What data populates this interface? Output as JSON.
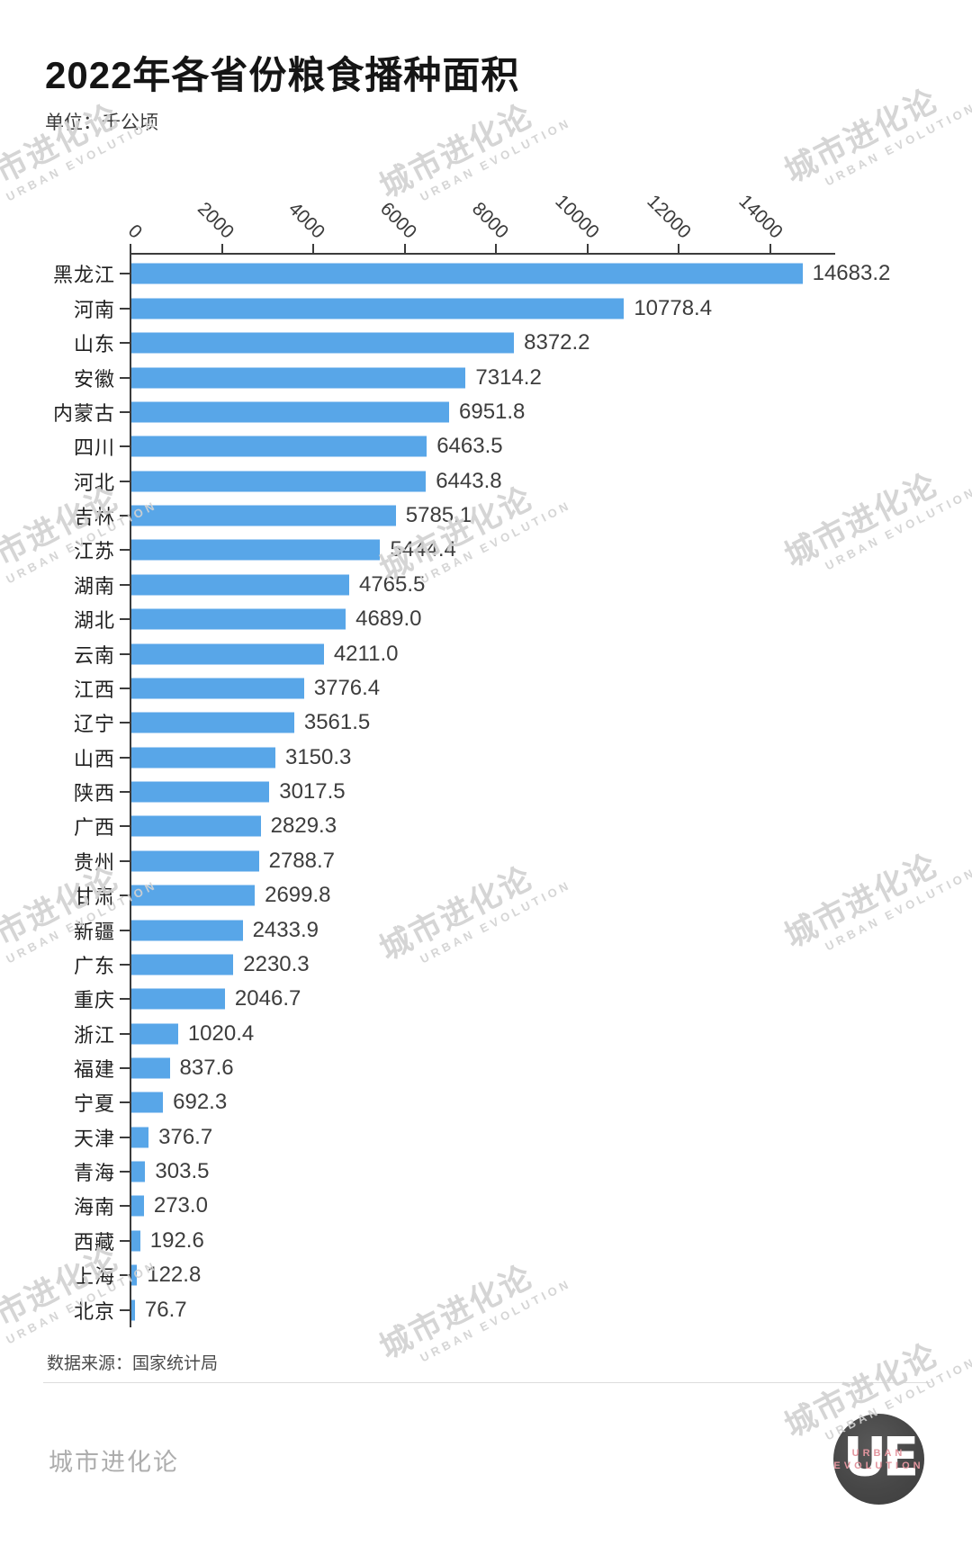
{
  "title": "2022年各省份粮食播种面积",
  "subtitle": "单位：千公顷",
  "source": "数据来源：国家统计局",
  "brand_footer": "城市进化论",
  "watermark": {
    "line1": "城市进化论",
    "line2": "URBAN EVOLUTION"
  },
  "logo": {
    "monogram": "UE",
    "line1": "URBAN",
    "line2": "EVOLUTION"
  },
  "colors": {
    "bar": "#58a6e8",
    "axis": "#3c3c3c",
    "value_text": "#3d3d3d",
    "label_text": "#1f1f1f",
    "watermark": "#d2d2d2",
    "divider": "#dcdcdc",
    "brand_text": "#adadad",
    "logo_bg": "#4a4a4a",
    "logo_accent": "#e2959e"
  },
  "chart_data": {
    "type": "bar",
    "orientation": "horizontal",
    "title": "2022年各省份粮食播种面积",
    "unit_label": "单位：千公顷",
    "xlabel": "",
    "ylabel": "",
    "x_ticks": [
      0,
      2000,
      4000,
      6000,
      8000,
      10000,
      12000,
      14000
    ],
    "xlim": [
      0,
      15400
    ],
    "grid": false,
    "legend": "none",
    "value_labels": "end_of_bar",
    "categories": [
      "黑龙江",
      "河南",
      "山东",
      "安徽",
      "内蒙古",
      "四川",
      "河北",
      "吉林",
      "江苏",
      "湖南",
      "湖北",
      "云南",
      "江西",
      "辽宁",
      "山西",
      "陕西",
      "广西",
      "贵州",
      "甘肃",
      "新疆",
      "广东",
      "重庆",
      "浙江",
      "福建",
      "宁夏",
      "天津",
      "青海",
      "海南",
      "西藏",
      "上海",
      "北京"
    ],
    "values": [
      14683.2,
      10778.4,
      8372.2,
      7314.2,
      6951.8,
      6463.5,
      6443.8,
      5785.1,
      5444.4,
      4765.5,
      4689.0,
      4211.0,
      3776.4,
      3561.5,
      3150.3,
      3017.5,
      2829.3,
      2788.7,
      2699.8,
      2433.9,
      2230.3,
      2046.7,
      1020.4,
      837.6,
      692.3,
      376.7,
      303.5,
      273.0,
      192.6,
      122.8,
      76.7
    ]
  }
}
